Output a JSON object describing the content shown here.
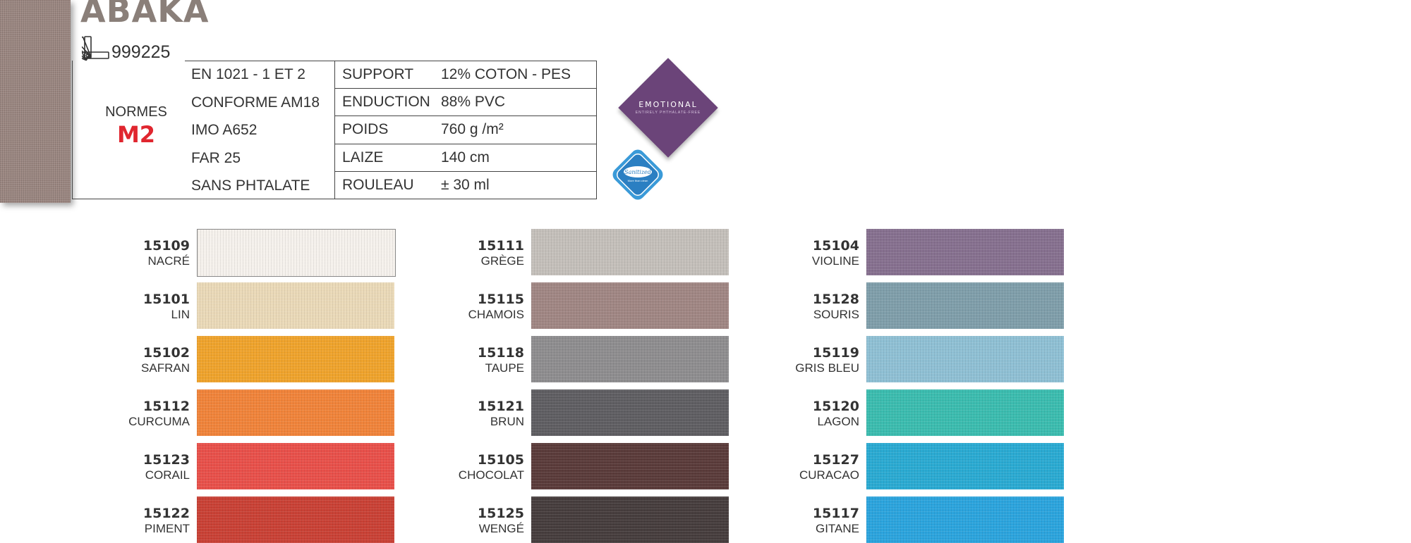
{
  "product": {
    "title": "ABAKA",
    "reference": "999225"
  },
  "normes": {
    "label": "NORMES",
    "value": "M2",
    "items": [
      "EN 1021 - 1 ET 2",
      "CONFORME AM18",
      "IMO A652",
      "FAR 25",
      "SANS PHTALATE"
    ]
  },
  "properties": [
    {
      "key": "SUPPORT",
      "value": "12% COTON - PES"
    },
    {
      "key": "ENDUCTION",
      "value": "88% PVC"
    },
    {
      "key": "POIDS",
      "value": "760 g /m²"
    },
    {
      "key": "LAIZE",
      "value": "140 cm"
    },
    {
      "key": "ROULEAU",
      "value": "± 30 ml"
    }
  ],
  "badges": {
    "emotional": "EMOTIONAL",
    "emotional_sub": "ENTIRELY PHTHALATE-FREE",
    "sanitized": "Sanitized",
    "sanitized_sub": "More than clean"
  },
  "colors": {
    "accent_red": "#e0262f",
    "title_gray": "#8a7f79",
    "emotional_purple": "#6b4479",
    "sanitized_blue": "#3a9ad8"
  },
  "palette": [
    [
      {
        "code": "15109",
        "name": "NACRÉ",
        "hex": "#f5f1ec"
      },
      {
        "code": "15101",
        "name": "LIN",
        "hex": "#ead9b8"
      },
      {
        "code": "15102",
        "name": "SAFRAN",
        "hex": "#efa32c"
      },
      {
        "code": "15112",
        "name": "CURCUMA",
        "hex": "#f0833a"
      },
      {
        "code": "15123",
        "name": "CORAIL",
        "hex": "#e8504a"
      },
      {
        "code": "15122",
        "name": "PIMENT",
        "hex": "#c94135"
      }
    ],
    [
      {
        "code": "15111",
        "name": "GRÈGE",
        "hex": "#c4bfba"
      },
      {
        "code": "15115",
        "name": "CHAMOIS",
        "hex": "#a08683"
      },
      {
        "code": "15118",
        "name": "TAUPE",
        "hex": "#8e8d8f"
      },
      {
        "code": "15121",
        "name": "BRUN",
        "hex": "#5f5e62"
      },
      {
        "code": "15105",
        "name": "CHOCOLAT",
        "hex": "#5a3b3a"
      },
      {
        "code": "15125",
        "name": "WENGÉ",
        "hex": "#463d3d"
      }
    ],
    [
      {
        "code": "15104",
        "name": "VIOLINE",
        "hex": "#86708f"
      },
      {
        "code": "15128",
        "name": "SOURIS",
        "hex": "#7f9eaa"
      },
      {
        "code": "15119",
        "name": "GRIS BLEU",
        "hex": "#8fc0d4"
      },
      {
        "code": "15120",
        "name": "LAGON",
        "hex": "#3bbcaf"
      },
      {
        "code": "15127",
        "name": "CURACAO",
        "hex": "#2aaad2"
      },
      {
        "code": "15117",
        "name": "GITANE",
        "hex": "#2ba4dd"
      }
    ]
  ]
}
